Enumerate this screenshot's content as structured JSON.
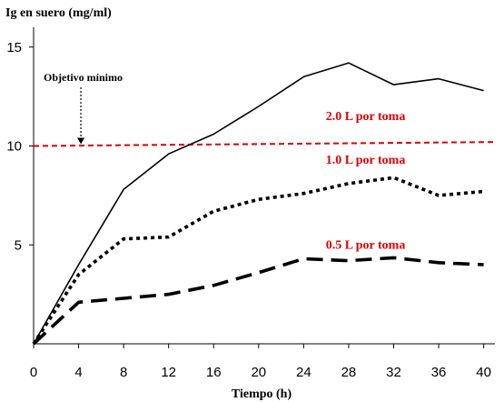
{
  "chart_data": {
    "type": "line",
    "title": "",
    "ylabel": "Ig en suero (mg/ml)",
    "xlabel": "Tiempo (h)",
    "x": [
      0,
      4,
      8,
      12,
      16,
      20,
      24,
      28,
      32,
      36,
      40
    ],
    "xlim": [
      0,
      41
    ],
    "ylim": [
      0,
      16
    ],
    "xticks": [
      "0",
      "4",
      "8",
      "12",
      "16",
      "20",
      "24",
      "28",
      "32",
      "36",
      "40"
    ],
    "yticks": [
      "5",
      "10",
      "15"
    ],
    "series": [
      {
        "name": "2.0 L por toma",
        "style": "solid",
        "color": "#000000",
        "values": [
          0,
          4.0,
          7.8,
          9.6,
          10.6,
          12.0,
          13.5,
          14.2,
          13.1,
          13.4,
          12.8
        ]
      },
      {
        "name": "1.0 L por toma",
        "style": "dotted",
        "color": "#000000",
        "values": [
          0,
          3.5,
          5.3,
          5.4,
          6.7,
          7.3,
          7.6,
          8.1,
          8.4,
          7.5,
          7.7
        ]
      },
      {
        "name": "0.5 L por toma",
        "style": "dashed",
        "color": "#000000",
        "points": [
          [
            0,
            0
          ],
          [
            4,
            2.1
          ],
          [
            8,
            2.3
          ],
          [
            12,
            2.5
          ],
          [
            16,
            2.95
          ],
          [
            20,
            3.6
          ],
          [
            24,
            4.3
          ],
          [
            28,
            4.2
          ],
          [
            32,
            4.35
          ],
          [
            36,
            4.1
          ],
          [
            40,
            4.0
          ]
        ]
      }
    ],
    "reference_line": {
      "label": "Objetivo mínimo",
      "style": "dashed",
      "color": "#e00000",
      "y_start": 10.0,
      "y_end": 10.2
    },
    "annotations": [
      {
        "text": "2.0 L por toma",
        "color": "#e00000",
        "x": 29.5,
        "y": 11.3
      },
      {
        "text": "1.0 L por toma",
        "color": "#e00000",
        "x": 29.5,
        "y": 9.1
      },
      {
        "text": "0.5 L por toma",
        "color": "#e00000",
        "x": 29.5,
        "y": 4.8
      }
    ],
    "grid": false,
    "legend": "none"
  }
}
